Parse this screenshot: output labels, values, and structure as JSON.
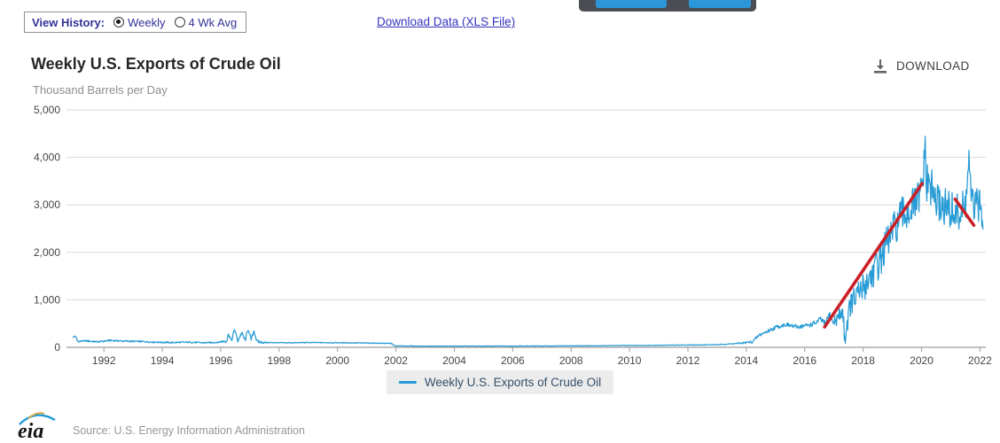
{
  "header": {
    "view_history_label": "View History:",
    "options": [
      {
        "label": "Weekly",
        "selected": true
      },
      {
        "label": "4 Wk Avg",
        "selected": false
      }
    ],
    "download_link": "Download Data (XLS File)"
  },
  "chart": {
    "title": "Weekly U.S. Exports of Crude Oil",
    "subtitle": "Thousand Barrels per Day",
    "download_label": "DOWNLOAD",
    "legend_label": "Weekly U.S. Exports of Crude Oil"
  },
  "icons": {
    "download": "download-tray-icon",
    "legend_swatch": "line-series-swatch",
    "logo": "eia-logo"
  },
  "colors": {
    "series_blue": "#279bd5",
    "trend_red": "#cb2027",
    "grid": "#d9d9d9",
    "axis": "#9a9a9a",
    "navy_text": "#333399"
  },
  "chart_data": {
    "type": "line",
    "title": "Weekly U.S. Exports of Crude Oil",
    "ylabel": "Thousand Barrels per Day",
    "xlim": [
      1990.72,
      2022.2
    ],
    "ylim": [
      0,
      5000
    ],
    "grid": true,
    "legend_position": "bottom",
    "x_ticks": [
      1992,
      1994,
      1996,
      1998,
      2000,
      2002,
      2004,
      2006,
      2008,
      2010,
      2012,
      2014,
      2016,
      2018,
      2020,
      2022
    ],
    "y_ticks": [
      0,
      1000,
      2000,
      3000,
      4000,
      5000
    ],
    "y_tick_labels": [
      "0",
      "1,000",
      "2,000",
      "3,000",
      "4,000",
      "5,000"
    ],
    "series": [
      {
        "name": "Weekly U.S. Exports of Crude Oil",
        "color": "#279bd5",
        "samples_per_year": 52,
        "anchors": [
          [
            1990.95,
            210
          ],
          [
            1991.02,
            245
          ],
          [
            1991.1,
            125
          ],
          [
            1991.4,
            135
          ],
          [
            1991.8,
            115
          ],
          [
            1992.2,
            145
          ],
          [
            1992.7,
            130
          ],
          [
            1993.2,
            122
          ],
          [
            1993.8,
            108
          ],
          [
            1994.3,
            100
          ],
          [
            1994.9,
            108
          ],
          [
            1995.4,
            95
          ],
          [
            1995.9,
            105
          ],
          [
            1996.2,
            140
          ],
          [
            1996.28,
            295
          ],
          [
            1996.36,
            120
          ],
          [
            1996.48,
            385
          ],
          [
            1996.58,
            130
          ],
          [
            1996.72,
            305
          ],
          [
            1996.84,
            140
          ],
          [
            1996.94,
            400
          ],
          [
            1997.04,
            150
          ],
          [
            1997.14,
            355
          ],
          [
            1997.24,
            120
          ],
          [
            1997.5,
            100
          ],
          [
            1998.2,
            95
          ],
          [
            1999.0,
            100
          ],
          [
            2000.0,
            96
          ],
          [
            2001.0,
            90
          ],
          [
            2001.85,
            82
          ],
          [
            2001.95,
            30
          ],
          [
            2003.0,
            24
          ],
          [
            2005.0,
            25
          ],
          [
            2007.0,
            28
          ],
          [
            2009.0,
            34
          ],
          [
            2011.0,
            42
          ],
          [
            2013.0,
            55
          ],
          [
            2013.8,
            85
          ],
          [
            2014.2,
            115
          ],
          [
            2014.45,
            260
          ],
          [
            2014.7,
            330
          ],
          [
            2015.0,
            420
          ],
          [
            2015.35,
            480
          ],
          [
            2015.7,
            430
          ],
          [
            2016.05,
            455
          ],
          [
            2016.35,
            505
          ],
          [
            2016.55,
            590
          ],
          [
            2016.7,
            480
          ],
          [
            2016.85,
            700
          ],
          [
            2016.95,
            520
          ],
          [
            2017.1,
            600
          ],
          [
            2017.3,
            760
          ],
          [
            2017.37,
            180
          ],
          [
            2017.55,
            890
          ],
          [
            2017.8,
            1080
          ],
          [
            2018.1,
            1350
          ],
          [
            2018.5,
            1750
          ],
          [
            2018.9,
            2300
          ],
          [
            2019.3,
            2750
          ],
          [
            2019.7,
            2950
          ],
          [
            2019.95,
            3150
          ],
          [
            2020.06,
            3500
          ],
          [
            2020.1,
            4350
          ],
          [
            2020.16,
            3450
          ],
          [
            2020.3,
            3400
          ],
          [
            2020.5,
            3050
          ],
          [
            2020.8,
            2950
          ],
          [
            2021.05,
            2850
          ],
          [
            2021.3,
            2800
          ],
          [
            2021.5,
            2950
          ],
          [
            2021.62,
            3950
          ],
          [
            2021.7,
            3050
          ],
          [
            2021.85,
            2950
          ],
          [
            2022.0,
            3000
          ],
          [
            2022.12,
            2650
          ]
        ],
        "volatility": [
          [
            1991.0,
            18
          ],
          [
            1995.9,
            15
          ],
          [
            1996.2,
            45
          ],
          [
            1997.3,
            35
          ],
          [
            1997.6,
            9
          ],
          [
            2001.8,
            8
          ],
          [
            2002.1,
            6
          ],
          [
            2013.5,
            7
          ],
          [
            2014.4,
            38
          ],
          [
            2016.0,
            48
          ],
          [
            2016.9,
            75
          ],
          [
            2017.25,
            200
          ],
          [
            2018.0,
            330
          ],
          [
            2019.0,
            390
          ],
          [
            2019.8,
            420
          ],
          [
            2020.1,
            460
          ],
          [
            2020.6,
            420
          ],
          [
            2021.1,
            430
          ],
          [
            2021.9,
            380
          ],
          [
            2022.12,
            260
          ]
        ]
      },
      {
        "name": "trend-line",
        "color": "#cb2027",
        "segments": [
          [
            2016.68,
            430,
            2020.02,
            3450
          ],
          [
            2021.15,
            3120,
            2021.79,
            2570
          ]
        ]
      }
    ]
  },
  "footer": {
    "logo_text": "eia",
    "source": "Source: U.S. Energy Information Administration"
  }
}
